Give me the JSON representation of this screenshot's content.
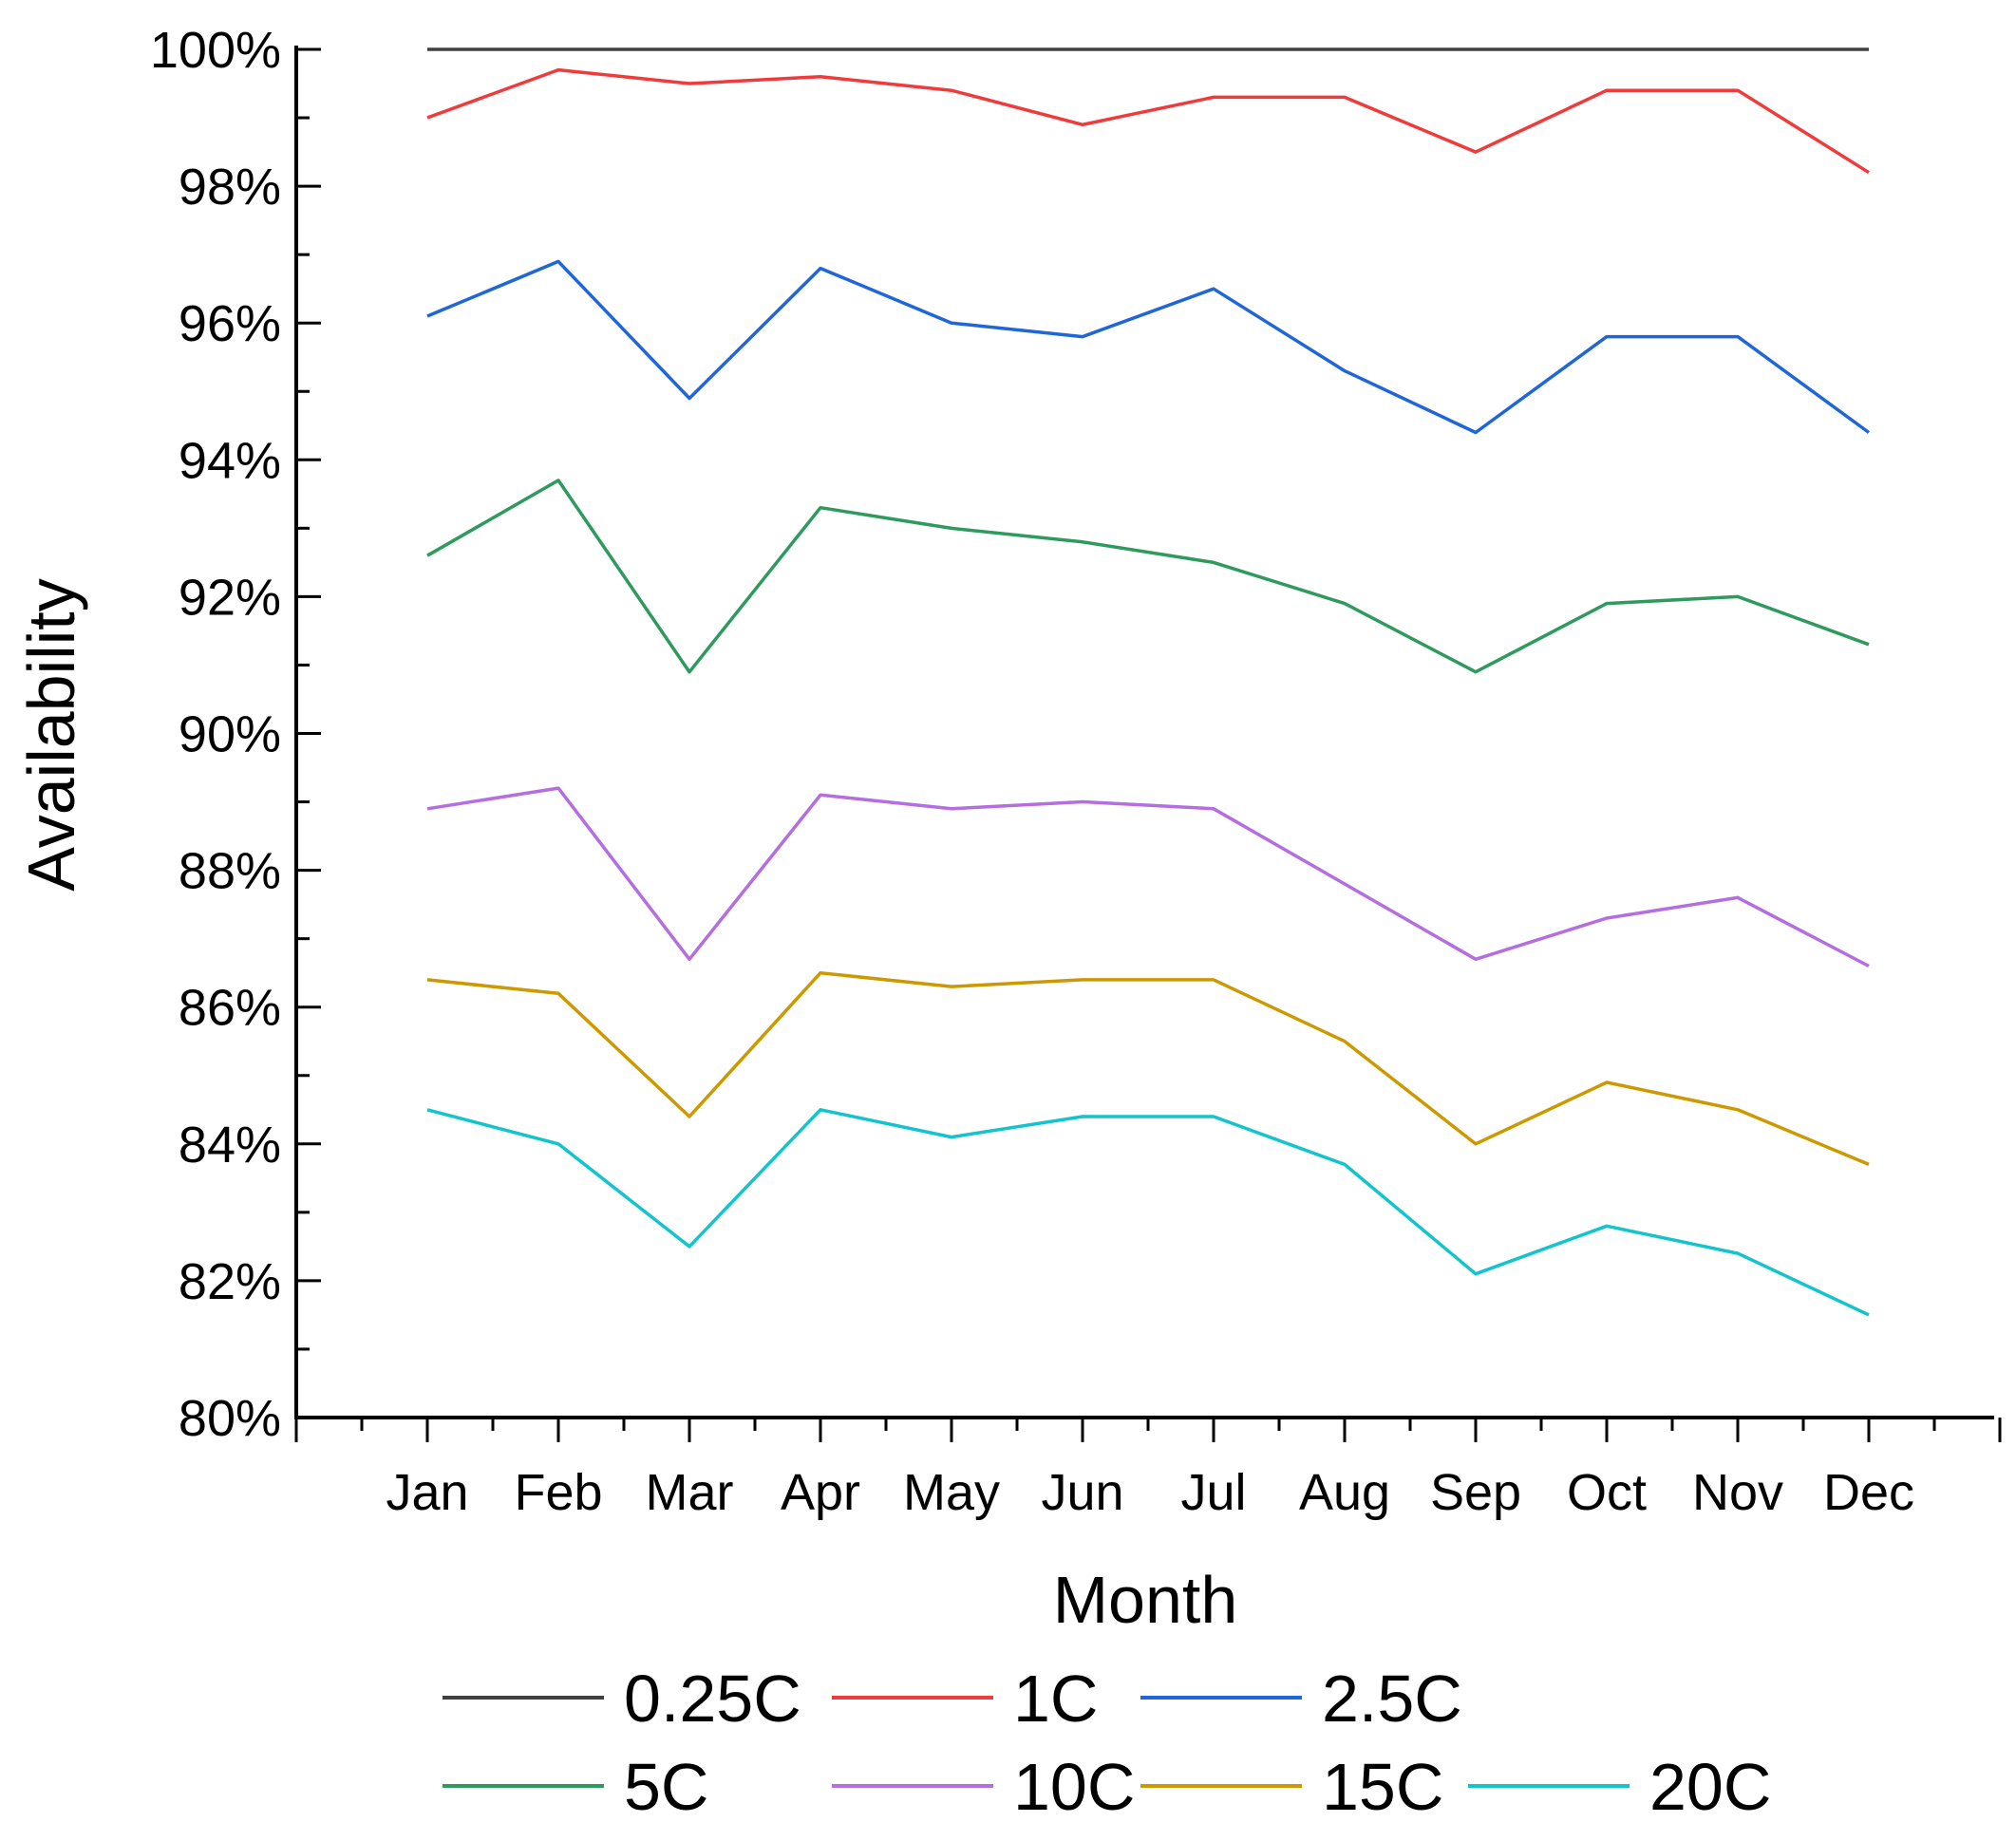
{
  "chart_data": {
    "type": "line",
    "title": "",
    "xlabel": "Month",
    "ylabel": "Availability",
    "ylim": [
      80,
      100
    ],
    "y_tick_values": [
      80,
      82,
      84,
      86,
      88,
      90,
      92,
      94,
      96,
      98,
      100
    ],
    "y_tick_labels": [
      "80%",
      "82%",
      "84%",
      "86%",
      "88%",
      "90%",
      "92%",
      "94%",
      "96%",
      "98%",
      "100%"
    ],
    "categories": [
      "Jan",
      "Feb",
      "Mar",
      "Apr",
      "May",
      "Jun",
      "Jul",
      "Aug",
      "Sep",
      "Oct",
      "Nov",
      "Dec"
    ],
    "grid": false,
    "legend_position": "bottom",
    "series": [
      {
        "name": "0.25C",
        "color": "#404040",
        "values": [
          100.0,
          100.0,
          100.0,
          100.0,
          100.0,
          100.0,
          100.0,
          100.0,
          100.0,
          100.0,
          100.0,
          100.0
        ]
      },
      {
        "name": "1C",
        "color": "#ef3b3b",
        "values": [
          99.0,
          99.7,
          99.5,
          99.6,
          99.4,
          98.9,
          99.3,
          99.3,
          98.5,
          99.4,
          99.4,
          98.2
        ]
      },
      {
        "name": "2.5C",
        "color": "#1f66d8",
        "values": [
          96.1,
          96.9,
          94.9,
          96.8,
          96.0,
          95.8,
          96.5,
          95.3,
          94.4,
          95.8,
          95.8,
          94.4
        ]
      },
      {
        "name": "5C",
        "color": "#2e9a5e",
        "values": [
          92.6,
          93.7,
          90.9,
          93.3,
          93.0,
          92.8,
          92.5,
          91.9,
          90.9,
          91.9,
          92.0,
          91.3
        ]
      },
      {
        "name": "10C",
        "color": "#b46ee0",
        "values": [
          88.9,
          89.2,
          86.7,
          89.1,
          88.9,
          89.0,
          88.9,
          87.8,
          86.7,
          87.3,
          87.6,
          86.6
        ]
      },
      {
        "name": "15C",
        "color": "#cc9900",
        "values": [
          86.4,
          86.2,
          84.4,
          86.5,
          86.3,
          86.4,
          86.4,
          85.5,
          84.0,
          84.9,
          84.5,
          83.7
        ]
      },
      {
        "name": "20C",
        "color": "#14c4cc",
        "values": [
          84.5,
          84.0,
          82.5,
          84.5,
          84.1,
          84.4,
          84.4,
          83.7,
          82.1,
          82.8,
          82.4,
          81.5
        ]
      }
    ]
  }
}
